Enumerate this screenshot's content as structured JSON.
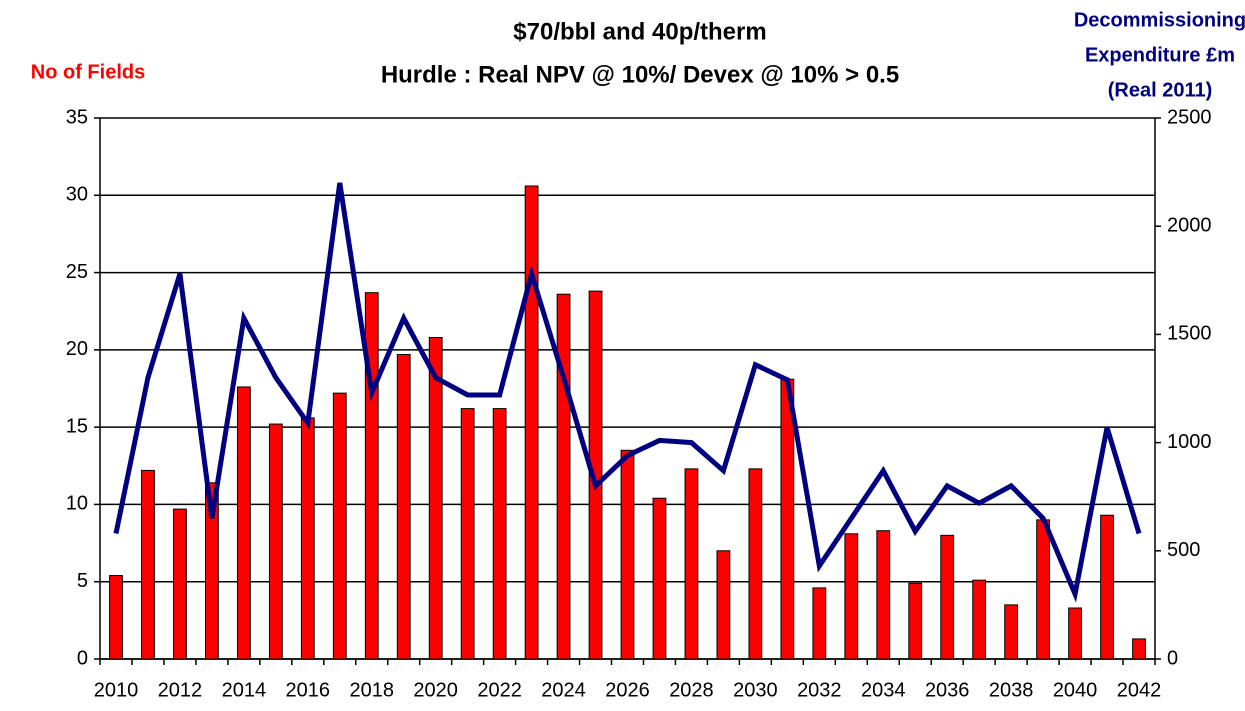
{
  "chart_data": {
    "type": "bar",
    "title": [
      "$70/bbl and 40p/therm",
      "Hurdle : Real NPV @ 10%/ Devex @ 10% > 0.5"
    ],
    "ylabel": "No of Fields",
    "y2label": [
      "Decommissioning",
      "Expenditure £m",
      "(Real 2011)"
    ],
    "categories": [
      "2010",
      null,
      "2012",
      null,
      "2014",
      null,
      "2016",
      null,
      "2018",
      null,
      "2020",
      null,
      "2022",
      null,
      "2024",
      null,
      "2026",
      null,
      "2028",
      null,
      "2030",
      null,
      "2032",
      null,
      "2034",
      null,
      "2036",
      null,
      "2038",
      null,
      "2040",
      null,
      "2042"
    ],
    "series": [
      {
        "type": "bar",
        "color": "#ff0000",
        "values": [
          5.4,
          12.2,
          9.7,
          11.4,
          17.6,
          15.2,
          15.6,
          17.2,
          23.7,
          19.7,
          20.8,
          16.2,
          16.2,
          30.6,
          23.6,
          23.8,
          13.5,
          10.4,
          12.3,
          7.0,
          12.3,
          18.1,
          4.6,
          8.1,
          8.3,
          4.9,
          8.0,
          5.1,
          3.5,
          9.0,
          3.3,
          9.3,
          1.3
        ]
      },
      {
        "type": "line",
        "axis": "y2",
        "color": "#000080",
        "values": [
          580,
          1300,
          1780,
          650,
          1575,
          1300,
          1090,
          2200,
          1230,
          1575,
          1300,
          1220,
          1220,
          1780,
          1300,
          800,
          940,
          1010,
          1000,
          870,
          1360,
          1290,
          430,
          650,
          870,
          590,
          800,
          720,
          800,
          650,
          300,
          1070,
          580
        ]
      }
    ],
    "ylim": [
      0,
      35
    ],
    "yticks": [
      0,
      5,
      10,
      15,
      20,
      25,
      30,
      35
    ],
    "y2lim": [
      0,
      2500
    ],
    "y2ticks": [
      0,
      500,
      1000,
      1500,
      2000,
      2500
    ],
    "grid": true
  }
}
